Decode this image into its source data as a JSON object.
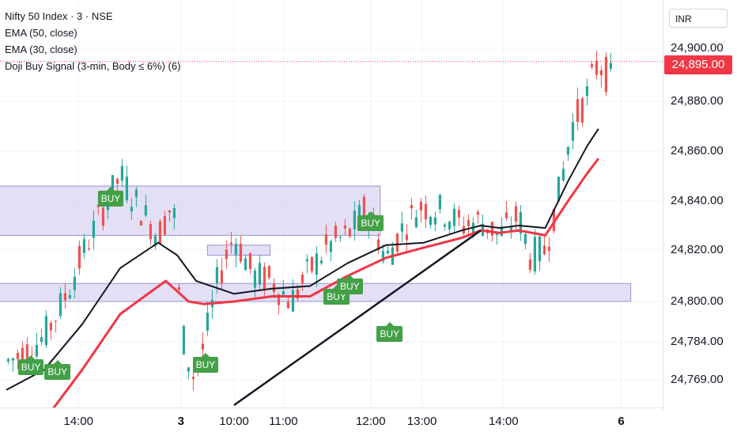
{
  "legend": {
    "symbol": "Nifty 50 Index · 3 · NSE",
    "ema50": "EMA (50, close)",
    "ema30": "EMA (30, close)",
    "indicator": "Doji Buy Signal (3-min, Body ≤ 6%) (6)"
  },
  "currency": "INR",
  "last_price": "24,895.00",
  "colors": {
    "up": "#26a69a",
    "down": "#ef5350",
    "ema50": "#131722",
    "ema30": "#f23645",
    "zone": "#ccc6ee",
    "buy": "#43a047",
    "trendline": "#131722"
  },
  "chart_data": {
    "type": "candlestick",
    "price_ticks": [
      "24,900.00",
      "24,880.00",
      "24,860.00",
      "24,840.00",
      "24,820.00",
      "24,800.00",
      "24,784.00",
      "24,769.00"
    ],
    "time_ticks": [
      "14:00",
      "3",
      "10:00",
      "11:00",
      "12:00",
      "13:00",
      "14:00",
      "6"
    ],
    "buy_label": "BUY",
    "buy_signals": [
      {
        "x": 0.6,
        "price": 24774
      },
      {
        "x": 1.3,
        "price": 24772
      },
      {
        "x": 2.7,
        "price": 24841
      },
      {
        "x": 5.2,
        "price": 24775
      },
      {
        "x": 8.65,
        "price": 24802
      },
      {
        "x": 9.0,
        "price": 24806
      },
      {
        "x": 9.55,
        "price": 24831
      },
      {
        "x": 10.05,
        "price": 24787
      }
    ],
    "zones": [
      {
        "x0": -0.3,
        "x1": 9.85,
        "top": 24846,
        "bottom": 24826
      },
      {
        "x0": 5.3,
        "x1": 6.95,
        "top": 24822,
        "bottom": 24818
      },
      {
        "x0": -0.3,
        "x1": 16.45,
        "top": 24807,
        "bottom": 24800
      }
    ],
    "trendline": {
      "from": [
        6.0,
        24759
      ],
      "to": [
        12.5,
        24828
      ]
    },
    "ema30": [
      [
        0.0,
        24750
      ],
      [
        1.0,
        24753
      ],
      [
        2.0,
        24773
      ],
      [
        3.0,
        24795
      ],
      [
        4.2,
        24808
      ],
      [
        4.8,
        24800
      ],
      [
        5.2,
        24799
      ],
      [
        6.0,
        24800
      ],
      [
        7.0,
        24802
      ],
      [
        8.0,
        24802
      ],
      [
        9.0,
        24810
      ],
      [
        10.0,
        24817
      ],
      [
        11.0,
        24821
      ],
      [
        12.0,
        24825
      ],
      [
        12.5,
        24828
      ],
      [
        13.0,
        24827
      ],
      [
        13.5,
        24828
      ],
      [
        14.2,
        24826
      ],
      [
        14.8,
        24840
      ],
      [
        15.3,
        24851
      ],
      [
        15.6,
        24857
      ]
    ],
    "ema50": [
      [
        0.0,
        24765
      ],
      [
        1.0,
        24773
      ],
      [
        2.0,
        24791
      ],
      [
        3.0,
        24813
      ],
      [
        4.0,
        24823
      ],
      [
        4.5,
        24818
      ],
      [
        5.0,
        24808
      ],
      [
        6.0,
        24803
      ],
      [
        7.0,
        24805
      ],
      [
        8.0,
        24806
      ],
      [
        9.0,
        24815
      ],
      [
        10.0,
        24822
      ],
      [
        11.0,
        24823
      ],
      [
        12.0,
        24828
      ],
      [
        12.5,
        24830
      ],
      [
        13.0,
        24829
      ],
      [
        13.5,
        24830
      ],
      [
        14.2,
        24829
      ],
      [
        14.8,
        24848
      ],
      [
        15.3,
        24862
      ],
      [
        15.6,
        24869
      ]
    ]
  }
}
